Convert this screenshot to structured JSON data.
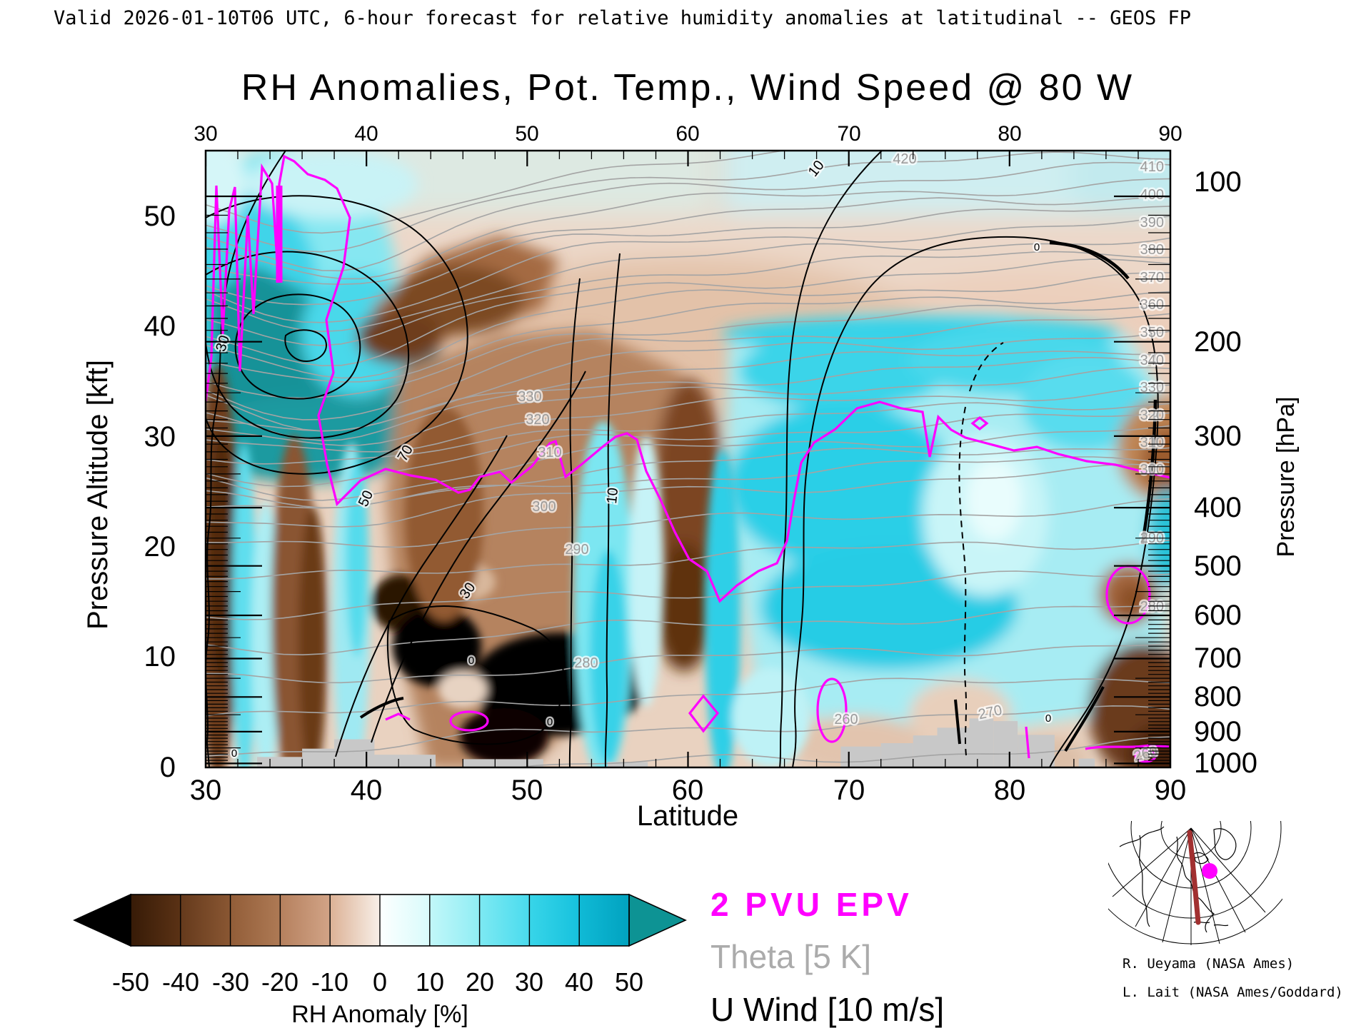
{
  "header": {
    "valid_text": "Valid 2026-01-10T06 UTC, 6-hour forecast for relative humidity anomalies at latitudinal -- GEOS FP"
  },
  "chart_data": {
    "type": "heatmap",
    "subtype": "latitude-height cross-section: filled RH-anomaly contours with overlaid Theta, U-wind and 2-PVU contour lines, GEOS FP forecast",
    "title": "RH Anomalies, Pot. Temp., Wind Speed @ 80 W",
    "xlabel": "Latitude",
    "x_range": [
      30,
      90
    ],
    "x_ticks": [
      "30",
      "40",
      "50",
      "60",
      "70",
      "80",
      "90"
    ],
    "x_minor_step_deg": 2,
    "ylabel_left": "Pressure Altitude [kft]",
    "y_left_range_kft": [
      0,
      56
    ],
    "y_left_ticks": [
      "0",
      "10",
      "20",
      "30",
      "40",
      "50"
    ],
    "ylabel_right": "Pressure [hPa]",
    "y_right_ticks": [
      "100",
      "200",
      "300",
      "400",
      "500",
      "600",
      "700",
      "800",
      "900",
      "1000"
    ],
    "fill_field": "relative humidity anomaly [%]",
    "fill_range": [
      -50,
      50
    ],
    "overlays": [
      {
        "name": "2 PVU EPV",
        "color": "#ff00ff"
      },
      {
        "name": "Theta",
        "contour_interval": "5 K",
        "color": "#a4a4a4"
      },
      {
        "name": "U Wind",
        "contour_interval": "10 m/s",
        "color": "#000000"
      }
    ],
    "theta_labels_right": [
      "410",
      "400",
      "390",
      "380",
      "370",
      "360",
      "350",
      "340",
      "330",
      "320",
      "310",
      "300",
      "290",
      "280"
    ],
    "theta_labels_inline": [
      "420",
      "330",
      "320",
      "310",
      "300",
      "290",
      "280",
      "270",
      "260",
      "260"
    ],
    "wind_contour_labels": [
      "30",
      "50",
      "70",
      "30",
      "10",
      "10",
      "0",
      "0",
      "0",
      "0",
      "0"
    ],
    "terrain_blocks_lat_kft": [
      [
        33.2,
        36,
        0.95
      ],
      [
        36,
        38,
        1.7
      ],
      [
        38,
        40.5,
        2.55
      ],
      [
        40.5,
        44.3,
        1.15
      ],
      [
        46,
        51,
        0.75
      ],
      [
        55,
        57.5,
        0.5
      ],
      [
        69.5,
        72,
        1.9
      ],
      [
        72,
        74,
        2.2
      ],
      [
        74,
        75.5,
        2.9
      ],
      [
        75.5,
        77.5,
        3.6
      ],
      [
        77.5,
        79,
        4.45
      ],
      [
        79,
        80.5,
        4.2
      ],
      [
        80.5,
        82.8,
        2.95
      ],
      [
        84.3,
        85.3,
        0.8
      ]
    ],
    "colorbar": {
      "label": "RH Anomaly [%]",
      "ticks": [
        "-50",
        "-40",
        "-30",
        "-20",
        "-10",
        "0",
        "10",
        "20",
        "30",
        "40",
        "50"
      ],
      "under_color": "#000000",
      "over_color": "#0d9394",
      "segments": [
        {
          "from": -50,
          "to": -40,
          "c1": "#371b07",
          "c2": "#5b3215"
        },
        {
          "from": -40,
          "to": -30,
          "c1": "#653a1c",
          "c2": "#8a5733"
        },
        {
          "from": -30,
          "to": -20,
          "c1": "#925d38",
          "c2": "#ae7a55"
        },
        {
          "from": -20,
          "to": -10,
          "c1": "#b5805e",
          "c2": "#d2a487"
        },
        {
          "from": -10,
          "to": 0,
          "c1": "#dcb195",
          "c2": "#f8f0e9"
        },
        {
          "from": 0,
          "to": 10,
          "c1": "#fdffff",
          "c2": "#d8fbfb"
        },
        {
          "from": 10,
          "to": 20,
          "c1": "#c2f7f9",
          "c2": "#8fedf4"
        },
        {
          "from": 20,
          "to": 30,
          "c1": "#7de9f2",
          "c2": "#49dbee"
        },
        {
          "from": 30,
          "to": 40,
          "c1": "#38d5e9",
          "c2": "#16c1dd"
        },
        {
          "from": 40,
          "to": 50,
          "c1": "#10bad6",
          "c2": "#01a2bf"
        }
      ]
    }
  },
  "legend": [
    {
      "label": "2 PVU EPV",
      "color": "#ff00ff"
    },
    {
      "label": "Theta [5 K]",
      "color": "#ababab"
    },
    {
      "label": "U Wind [10 m/s]",
      "color": "#000000"
    }
  ],
  "inset_map": {
    "marker_color": "#ff00ff",
    "line_color": "#a13030"
  },
  "credits": [
    "R. Ueyama (NASA Ames)",
    "L. Lait (NASA Ames/Goddard)"
  ]
}
